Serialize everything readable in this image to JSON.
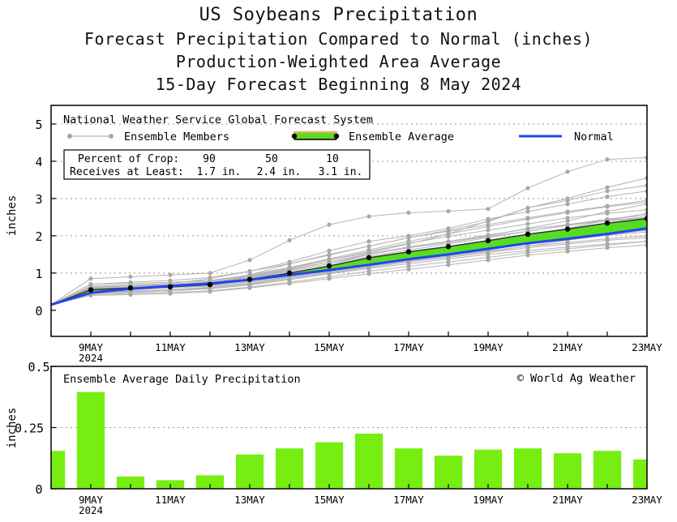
{
  "titles": {
    "line1": "US Soybeans Precipitation",
    "line2": "Forecast Precipitation Compared to Normal (inches)",
    "line3": "Production-Weighted Area Average",
    "line4": "15-Day Forecast Beginning 8 May 2024"
  },
  "colors": {
    "ensemble_member": "#b4b4b4",
    "ensemble_member_dot": "#a8a8a8",
    "ensemble_avg_fill": "#55dd22",
    "ensemble_avg_edge": "#e8b060",
    "ensemble_avg_dot": "#000000",
    "normal": "#2244ee",
    "daily_bar": "#77ee11"
  },
  "legend": {
    "system": "National Weather Service Global Forecast System",
    "members": "Ensemble Members",
    "average": "Ensemble Average",
    "normal": "Normal"
  },
  "crop_table": {
    "row1_label": "Percent of Crop:",
    "row2_label": "Receives at Least:",
    "percents": [
      "90",
      "50",
      "10"
    ],
    "amounts": [
      "1.7 in.",
      "2.4 in.",
      "3.1 in."
    ]
  },
  "copyright": "© World Ag Weather",
  "chart_data": [
    {
      "type": "line",
      "title": "Forecast Precipitation Compared to Normal (inches)",
      "ylabel": "inches",
      "ylim": [
        -0.7,
        5.5
      ],
      "yticks": [
        0,
        1,
        2,
        3,
        4,
        5
      ],
      "ytick_labels": [
        "0",
        "1",
        "2",
        "3",
        "4",
        "5"
      ],
      "xlim": [
        8,
        23
      ],
      "xticks": [
        9,
        11,
        13,
        15,
        17,
        19,
        21,
        23
      ],
      "xtick_labels": [
        "9MAY",
        "11MAY",
        "13MAY",
        "15MAY",
        "17MAY",
        "19MAY",
        "21MAY",
        "23MAY"
      ],
      "xtick_sublabel": "2024",
      "x": [
        8,
        9,
        10,
        11,
        12,
        13,
        14,
        15,
        16,
        17,
        18,
        19,
        20,
        21,
        22,
        23
      ],
      "normal": [
        0.15,
        0.47,
        0.58,
        0.65,
        0.72,
        0.82,
        0.95,
        1.08,
        1.22,
        1.37,
        1.5,
        1.65,
        1.8,
        1.92,
        2.05,
        2.2
      ],
      "ensemble_average": [
        0.15,
        0.55,
        0.6,
        0.63,
        0.69,
        0.83,
        1.0,
        1.19,
        1.41,
        1.57,
        1.71,
        1.87,
        2.04,
        2.18,
        2.34,
        2.46
      ],
      "ensemble_members": [
        [
          0.15,
          0.85,
          0.9,
          0.95,
          1.0,
          1.35,
          1.88,
          2.3,
          2.52,
          2.62,
          2.66,
          2.72,
          3.28,
          3.72,
          4.05,
          4.1
        ],
        [
          0.15,
          0.6,
          0.6,
          0.65,
          0.72,
          0.95,
          1.25,
          1.5,
          1.72,
          1.95,
          2.15,
          2.38,
          2.75,
          3.0,
          3.3,
          3.55
        ],
        [
          0.15,
          0.7,
          0.72,
          0.75,
          0.8,
          0.95,
          1.15,
          1.35,
          1.55,
          1.78,
          2.05,
          2.4,
          2.75,
          2.95,
          3.2,
          3.35
        ],
        [
          0.15,
          0.65,
          0.68,
          0.72,
          0.85,
          1.05,
          1.3,
          1.6,
          1.85,
          2.0,
          2.2,
          2.45,
          2.65,
          2.85,
          3.05,
          3.2
        ],
        [
          0.15,
          0.55,
          0.6,
          0.65,
          0.7,
          0.85,
          1.05,
          1.25,
          1.5,
          1.7,
          1.85,
          2.0,
          2.2,
          2.4,
          2.65,
          2.85
        ],
        [
          0.15,
          0.5,
          0.55,
          0.6,
          0.68,
          0.8,
          0.98,
          1.15,
          1.32,
          1.48,
          1.62,
          1.8,
          2.0,
          2.2,
          2.42,
          2.6
        ],
        [
          0.15,
          0.45,
          0.5,
          0.55,
          0.6,
          0.72,
          0.88,
          1.02,
          1.18,
          1.32,
          1.45,
          1.58,
          1.72,
          1.88,
          2.02,
          2.15
        ],
        [
          0.15,
          0.42,
          0.45,
          0.48,
          0.52,
          0.62,
          0.75,
          0.9,
          1.05,
          1.18,
          1.3,
          1.42,
          1.55,
          1.65,
          1.75,
          1.85
        ],
        [
          0.15,
          0.6,
          0.62,
          0.66,
          0.72,
          0.88,
          1.08,
          1.3,
          1.52,
          1.7,
          1.85,
          2.02,
          2.18,
          2.3,
          2.45,
          2.55
        ],
        [
          0.15,
          0.55,
          0.58,
          0.62,
          0.68,
          0.8,
          0.95,
          1.12,
          1.28,
          1.42,
          1.55,
          1.68,
          1.8,
          1.92,
          2.05,
          2.15
        ],
        [
          0.15,
          0.5,
          0.52,
          0.55,
          0.58,
          0.68,
          0.82,
          0.98,
          1.12,
          1.25,
          1.38,
          1.5,
          1.6,
          1.7,
          1.78,
          1.85
        ],
        [
          0.15,
          0.62,
          0.66,
          0.7,
          0.78,
          0.95,
          1.15,
          1.38,
          1.62,
          1.85,
          2.05,
          2.25,
          2.45,
          2.62,
          2.78,
          2.9
        ],
        [
          0.15,
          0.4,
          0.42,
          0.45,
          0.5,
          0.6,
          0.72,
          0.85,
          0.98,
          1.1,
          1.22,
          1.35,
          1.48,
          1.58,
          1.68,
          1.75
        ],
        [
          0.15,
          0.58,
          0.62,
          0.68,
          0.75,
          0.9,
          1.1,
          1.3,
          1.5,
          1.68,
          1.82,
          1.98,
          2.12,
          2.28,
          2.42,
          2.5
        ],
        [
          0.15,
          0.52,
          0.56,
          0.6,
          0.65,
          0.78,
          0.92,
          1.08,
          1.25,
          1.4,
          1.52,
          1.65,
          1.78,
          1.9,
          2.02,
          2.1
        ],
        [
          0.15,
          0.7,
          0.75,
          0.8,
          0.88,
          1.05,
          1.25,
          1.48,
          1.72,
          1.95,
          2.12,
          2.3,
          2.48,
          2.65,
          2.8,
          2.95
        ],
        [
          0.15,
          0.48,
          0.5,
          0.55,
          0.62,
          0.75,
          0.9,
          1.05,
          1.2,
          1.35,
          1.48,
          1.6,
          1.72,
          1.82,
          1.92,
          2.0
        ],
        [
          0.15,
          0.62,
          0.65,
          0.68,
          0.75,
          0.92,
          1.12,
          1.35,
          1.58,
          1.8,
          1.98,
          2.15,
          2.32,
          2.48,
          2.6,
          2.7
        ],
        [
          0.15,
          0.45,
          0.48,
          0.52,
          0.58,
          0.7,
          0.85,
          1.0,
          1.15,
          1.3,
          1.42,
          1.55,
          1.68,
          1.78,
          1.88,
          1.95
        ],
        [
          0.15,
          0.55,
          0.6,
          0.66,
          0.74,
          0.88,
          1.05,
          1.25,
          1.45,
          1.62,
          1.78,
          1.95,
          2.12,
          2.28,
          2.4,
          2.48
        ]
      ]
    },
    {
      "type": "bar",
      "title": "Ensemble Average Daily Precipitation",
      "ylabel": "inches",
      "ylim": [
        0,
        0.5
      ],
      "yticks": [
        0,
        0.25,
        0.5
      ],
      "ytick_labels": [
        "0",
        "0.25",
        "0.5"
      ],
      "xlim": [
        8,
        23
      ],
      "xticks": [
        9,
        11,
        13,
        15,
        17,
        19,
        21,
        23
      ],
      "xtick_labels": [
        "9MAY",
        "11MAY",
        "13MAY",
        "15MAY",
        "17MAY",
        "19MAY",
        "21MAY",
        "23MAY"
      ],
      "xtick_sublabel": "2024",
      "x": [
        8,
        9,
        10,
        11,
        12,
        13,
        14,
        15,
        16,
        17,
        18,
        19,
        20,
        21,
        22,
        23
      ],
      "values": [
        0.155,
        0.395,
        0.05,
        0.035,
        0.055,
        0.14,
        0.165,
        0.19,
        0.225,
        0.165,
        0.135,
        0.16,
        0.165,
        0.145,
        0.155,
        0.12
      ]
    }
  ]
}
